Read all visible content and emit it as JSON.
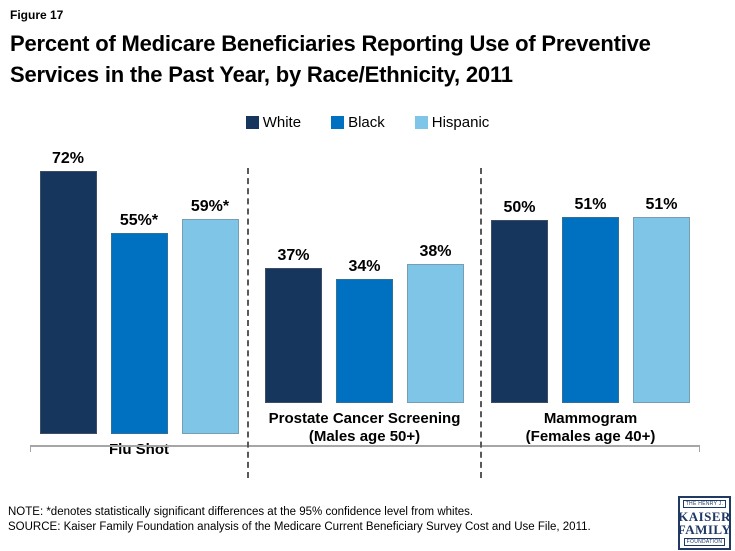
{
  "figure_label": "Figure 17",
  "title": "Percent of Medicare Beneficiaries Reporting Use of Preventive Services in the Past Year, by Race/Ethnicity, 2011",
  "chart_data": {
    "type": "bar",
    "title": "Percent of Medicare Beneficiaries Reporting Use of Preventive Services in the Past Year, by Race/Ethnicity, 2011",
    "categories": [
      [
        "Flu Shot"
      ],
      [
        "Prostate Cancer Screening",
        "(Males age 50+)"
      ],
      [
        "Mammogram",
        "(Females age 40+)"
      ]
    ],
    "series": [
      {
        "name": "White",
        "color": "#17365d",
        "values": [
          72,
          37,
          50
        ],
        "labels": [
          "72%",
          "37%",
          "50%"
        ]
      },
      {
        "name": "Black",
        "color": "#0070c0",
        "values": [
          55,
          34,
          51
        ],
        "labels": [
          "55%*",
          "34%",
          "51%"
        ]
      },
      {
        "name": "Hispanic",
        "color": "#7fc5e8",
        "values": [
          59,
          38,
          51
        ],
        "labels": [
          "59%*",
          "38%",
          "51%"
        ]
      }
    ],
    "xlabel": "",
    "ylabel": "",
    "ylim": [
      0,
      80
    ],
    "grid": false,
    "legend_position": "top",
    "unit": "%"
  },
  "note": "NOTE: *denotes statistically significant differences at the 95% confidence level from whites.",
  "source": "SOURCE: Kaiser Family Foundation analysis of the Medicare Current Beneficiary Survey Cost and Use File, 2011.",
  "logo": {
    "line1": "THE HENRY J.",
    "line2": "KAISER",
    "line3": "FAMILY",
    "line4": "FOUNDATION"
  },
  "colors": {
    "axis": "#a6a6a6",
    "separator": "#595959",
    "logo_navy": "#1f3864"
  }
}
